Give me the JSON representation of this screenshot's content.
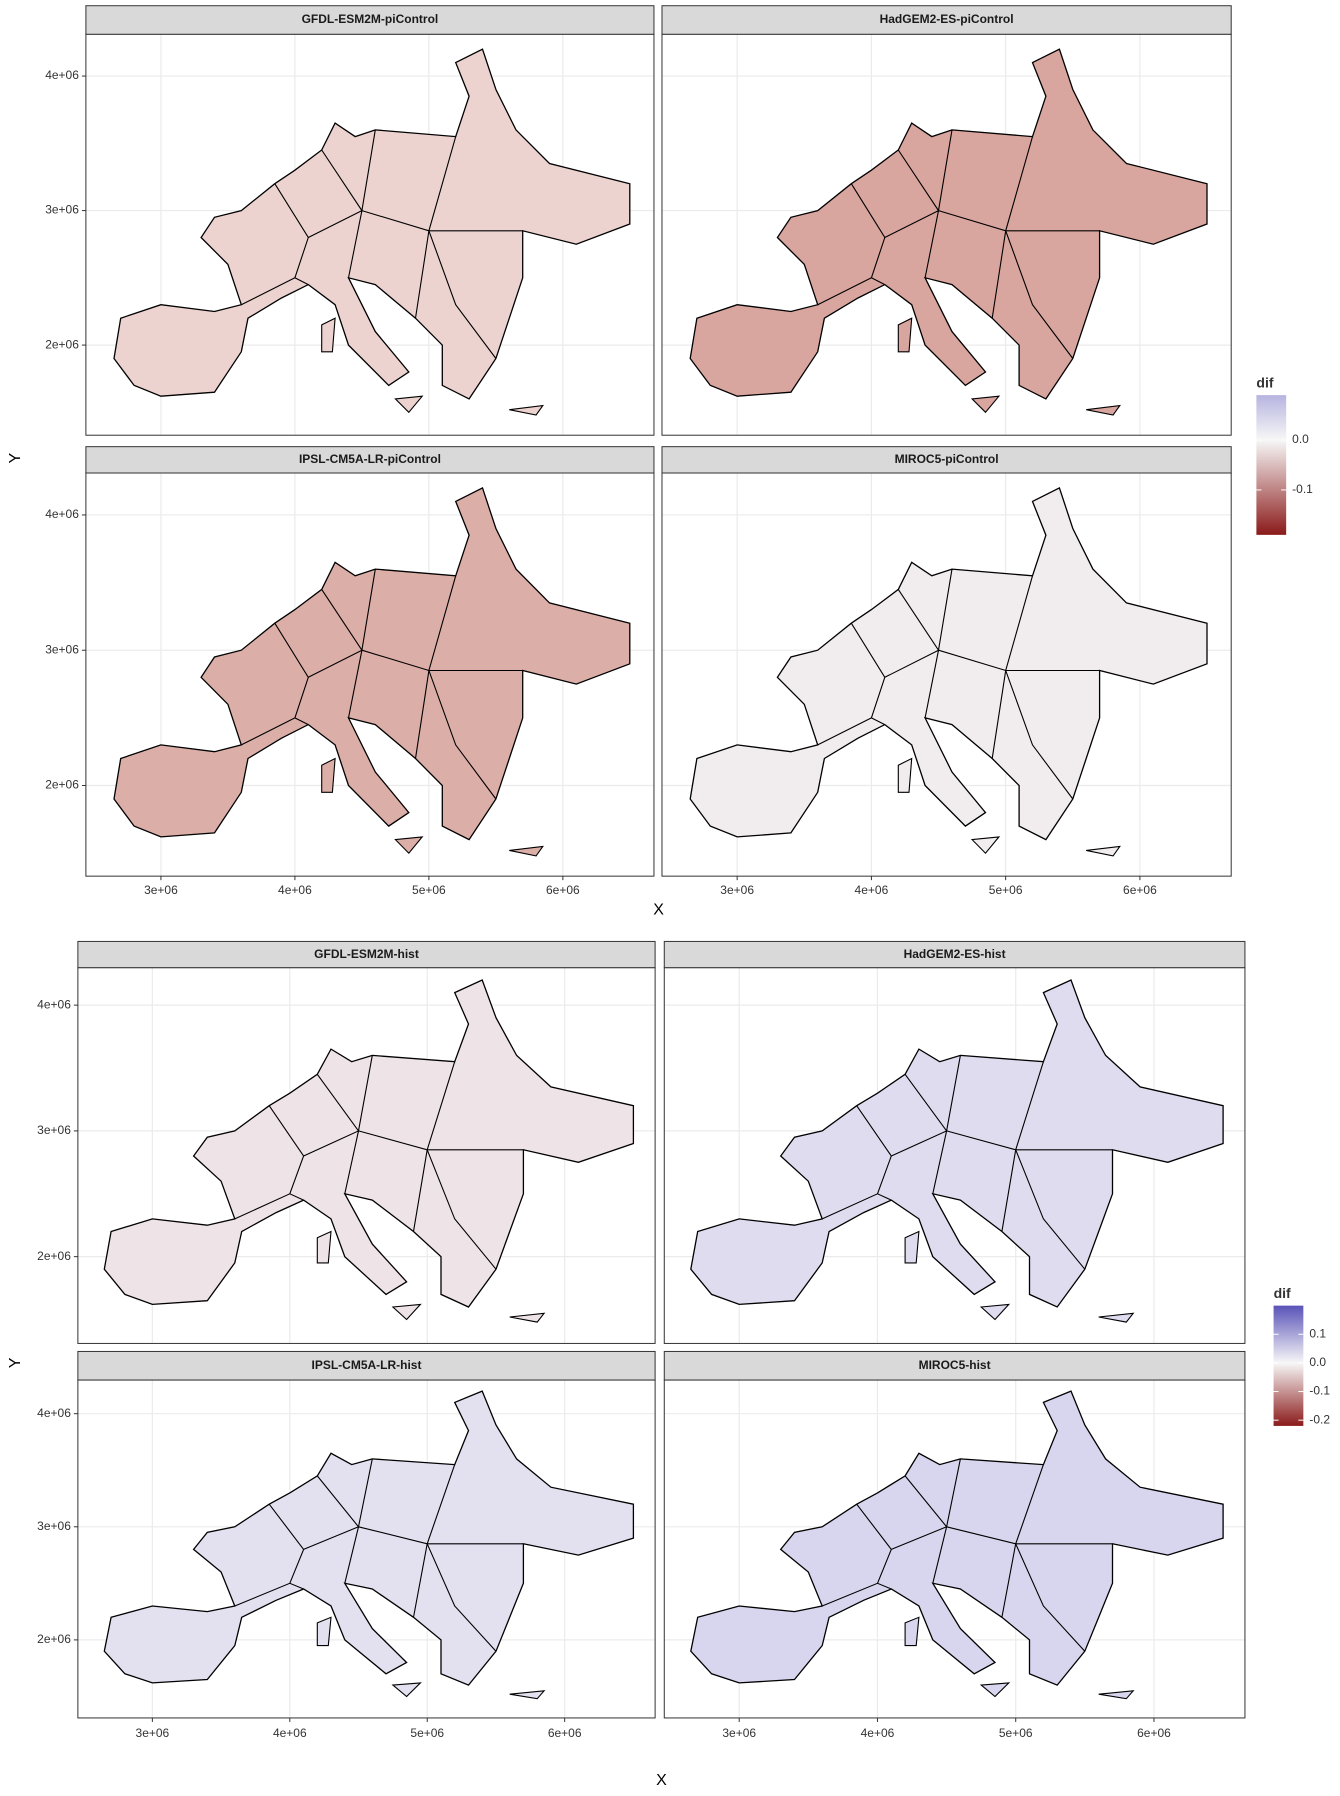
{
  "figures": [
    {
      "panels": [
        {
          "title": "GFDL-ESM2M-piControl",
          "color": "#ecd3d0"
        },
        {
          "title": "HadGEM2-ES-piControl",
          "color": "#d9a59f"
        },
        {
          "title": "IPSL-CM5A-LR-piControl",
          "color": "#dcaea8"
        },
        {
          "title": "MIROC5-piControl",
          "color": "#f1ecee"
        }
      ],
      "x_label": "X",
      "y_label": "Y",
      "xlim": [
        2440000,
        6680000
      ],
      "ylim": [
        1330000,
        4310000
      ],
      "xticks": [
        {
          "value": 3000000,
          "label": "3e+06"
        },
        {
          "value": 4000000,
          "label": "4e+06"
        },
        {
          "value": 5000000,
          "label": "5e+06"
        },
        {
          "value": 6000000,
          "label": "6e+06"
        }
      ],
      "yticks": [
        {
          "value": 2000000,
          "label": "2e+06"
        },
        {
          "value": 3000000,
          "label": "3e+06"
        },
        {
          "value": 4000000,
          "label": "4e+06"
        }
      ],
      "grid": true,
      "legend": {
        "title": "dif",
        "range": [
          -0.19,
          0.09
        ],
        "low_color": "#8b1a1a",
        "mid_color": "#f7f7f7",
        "high_color": "#b6b4e0",
        "ticks": [
          {
            "value": 0,
            "label": "0.0"
          },
          {
            "value": -0.1,
            "label": "-0.1"
          }
        ]
      }
    },
    {
      "panels": [
        {
          "title": "GFDL-ESM2M-hist",
          "color": "#eee3e6"
        },
        {
          "title": "HadGEM2-ES-hist",
          "color": "#e0dcef"
        },
        {
          "title": "IPSL-CM5A-LR-hist",
          "color": "#e3e0f0"
        },
        {
          "title": "MIROC5-hist",
          "color": "#d8d6ee"
        }
      ],
      "x_label": "X",
      "y_label": "Y",
      "xlim": [
        2458000,
        6658000
      ],
      "ylim": [
        1310000,
        4297000
      ],
      "xticks": [
        {
          "value": 3000000,
          "label": "3e+06"
        },
        {
          "value": 4000000,
          "label": "4e+06"
        },
        {
          "value": 5000000,
          "label": "5e+06"
        },
        {
          "value": 6000000,
          "label": "6e+06"
        }
      ],
      "yticks": [
        {
          "value": 2000000,
          "label": "2e+06"
        },
        {
          "value": 3000000,
          "label": "3e+06"
        },
        {
          "value": 4000000,
          "label": "4e+06"
        }
      ],
      "grid": true,
      "legend": {
        "title": "dif",
        "range": [
          -0.22,
          0.2
        ],
        "low_color": "#8b1a1a",
        "mid_color": "#f7f7f7",
        "high_color": "#5a53b8",
        "ticks": [
          {
            "value": 0.1,
            "label": "0.1"
          },
          {
            "value": 0,
            "label": "0.0"
          },
          {
            "value": -0.1,
            "label": "-0.1"
          },
          {
            "value": -0.2,
            "label": "-0.2"
          }
        ]
      }
    }
  ]
}
